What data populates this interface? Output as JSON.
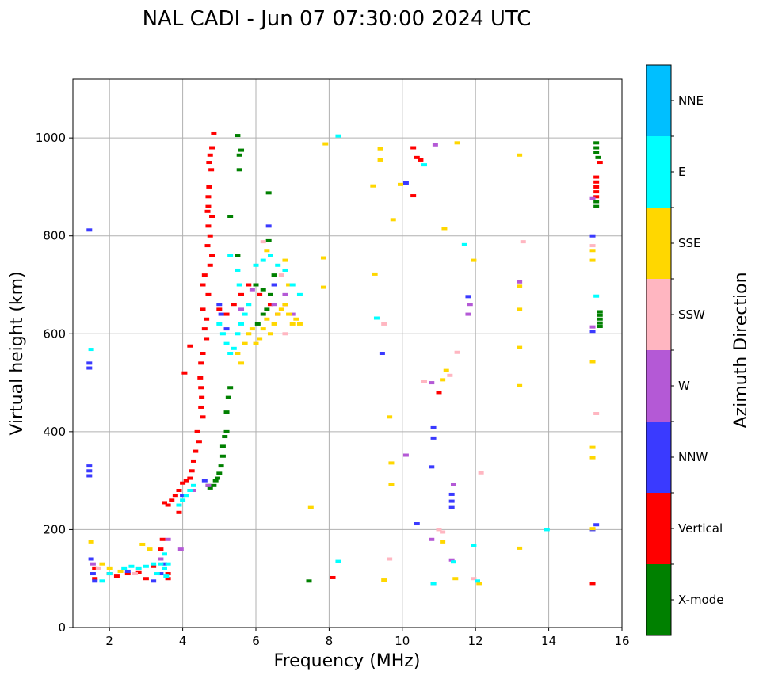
{
  "chart_data": {
    "type": "scatter",
    "title": "NAL CADI - Jun 07 07:30:00 2024 UTC",
    "xlabel": "Frequency (MHz)",
    "ylabel": "Virtual height (km)",
    "xlim": [
      1,
      16
    ],
    "ylim": [
      0,
      1120
    ],
    "xticks": [
      2,
      4,
      6,
      8,
      10,
      12,
      14,
      16
    ],
    "yticks": [
      0,
      200,
      400,
      600,
      800,
      1000
    ],
    "grid": true,
    "colorbar": {
      "label": "Azimuth Direction",
      "categories": [
        "X-mode",
        "Vertical",
        "NNW",
        "W",
        "SSW",
        "SSE",
        "E",
        "NNE"
      ],
      "colors": [
        "#008000",
        "#ff0000",
        "#3a3aff",
        "#b459d6",
        "#ffb6c1",
        "#ffd700",
        "#00ffff",
        "#00bfff"
      ]
    },
    "series": [
      {
        "name": "X-mode",
        "points": [
          [
            5.5,
            1005
          ],
          [
            5.6,
            975
          ],
          [
            5.55,
            965
          ],
          [
            5.55,
            935
          ],
          [
            6.35,
            888
          ],
          [
            5.3,
            840
          ],
          [
            5.5,
            760
          ],
          [
            5.3,
            490
          ],
          [
            5.25,
            470
          ],
          [
            5.2,
            440
          ],
          [
            5.2,
            400
          ],
          [
            5.15,
            390
          ],
          [
            5.1,
            370
          ],
          [
            5.1,
            350
          ],
          [
            5.05,
            330
          ],
          [
            5.0,
            315
          ],
          [
            4.95,
            305
          ],
          [
            4.9,
            300
          ],
          [
            4.85,
            290
          ],
          [
            4.75,
            285
          ],
          [
            4.7,
            290
          ],
          [
            6.0,
            700
          ],
          [
            6.2,
            690
          ],
          [
            6.4,
            680
          ],
          [
            6.3,
            650
          ],
          [
            6.2,
            640
          ],
          [
            6.05,
            620
          ],
          [
            6.5,
            720
          ],
          [
            6.35,
            790
          ],
          [
            7.45,
            95
          ],
          [
            15.3,
            990
          ],
          [
            15.3,
            980
          ],
          [
            15.3,
            970
          ],
          [
            15.35,
            960
          ],
          [
            15.3,
            870
          ],
          [
            15.3,
            860
          ],
          [
            15.4,
            645
          ],
          [
            15.4,
            638
          ],
          [
            15.4,
            630
          ],
          [
            15.4,
            622
          ],
          [
            15.4,
            615
          ]
        ]
      },
      {
        "name": "Vertical",
        "points": [
          [
            4.85,
            1010
          ],
          [
            4.8,
            980
          ],
          [
            4.75,
            965
          ],
          [
            4.72,
            950
          ],
          [
            4.78,
            935
          ],
          [
            4.72,
            900
          ],
          [
            4.7,
            880
          ],
          [
            4.7,
            860
          ],
          [
            4.8,
            840
          ],
          [
            4.68,
            850
          ],
          [
            4.7,
            820
          ],
          [
            4.75,
            800
          ],
          [
            4.68,
            780
          ],
          [
            4.8,
            760
          ],
          [
            4.75,
            740
          ],
          [
            4.6,
            720
          ],
          [
            4.55,
            700
          ],
          [
            4.7,
            680
          ],
          [
            4.55,
            650
          ],
          [
            4.65,
            630
          ],
          [
            4.6,
            610
          ],
          [
            4.65,
            590
          ],
          [
            4.55,
            560
          ],
          [
            4.5,
            540
          ],
          [
            4.48,
            510
          ],
          [
            4.5,
            490
          ],
          [
            4.52,
            470
          ],
          [
            4.5,
            450
          ],
          [
            4.55,
            430
          ],
          [
            4.4,
            400
          ],
          [
            4.45,
            380
          ],
          [
            4.35,
            360
          ],
          [
            4.3,
            340
          ],
          [
            4.25,
            320
          ],
          [
            4.2,
            305
          ],
          [
            4.1,
            300
          ],
          [
            4.0,
            295
          ],
          [
            3.9,
            280
          ],
          [
            3.8,
            270
          ],
          [
            3.7,
            260
          ],
          [
            3.6,
            250
          ],
          [
            3.5,
            255
          ],
          [
            3.9,
            235
          ],
          [
            4.05,
            520
          ],
          [
            4.2,
            575
          ],
          [
            5.0,
            650
          ],
          [
            5.2,
            640
          ],
          [
            5.4,
            660
          ],
          [
            5.6,
            680
          ],
          [
            5.8,
            700
          ],
          [
            6.1,
            680
          ],
          [
            6.4,
            660
          ],
          [
            6.6,
            640
          ],
          [
            6.8,
            660
          ],
          [
            1.6,
            120
          ],
          [
            1.6,
            100
          ],
          [
            2.0,
            110
          ],
          [
            2.2,
            105
          ],
          [
            2.5,
            110
          ],
          [
            2.8,
            112
          ],
          [
            3.0,
            100
          ],
          [
            3.6,
            110
          ],
          [
            3.6,
            100
          ],
          [
            3.2,
            125
          ],
          [
            3.4,
            160
          ],
          [
            3.45,
            180
          ],
          [
            8.1,
            102
          ],
          [
            10.3,
            980
          ],
          [
            10.4,
            960
          ],
          [
            10.5,
            955
          ],
          [
            10.3,
            882
          ],
          [
            11.0,
            480
          ],
          [
            15.4,
            950
          ],
          [
            15.3,
            920
          ],
          [
            15.3,
            910
          ],
          [
            15.3,
            900
          ],
          [
            15.3,
            890
          ],
          [
            15.3,
            880
          ],
          [
            15.2,
            90
          ]
        ]
      },
      {
        "name": "NNW",
        "points": [
          [
            1.45,
            812
          ],
          [
            1.45,
            540
          ],
          [
            1.45,
            530
          ],
          [
            1.45,
            330
          ],
          [
            1.45,
            320
          ],
          [
            1.45,
            310
          ],
          [
            1.5,
            140
          ],
          [
            1.55,
            110
          ],
          [
            1.6,
            95
          ],
          [
            2.5,
            115
          ],
          [
            3.2,
            95
          ],
          [
            3.4,
            110
          ],
          [
            3.5,
            130
          ],
          [
            4.0,
            270
          ],
          [
            4.6,
            300
          ],
          [
            5.0,
            660
          ],
          [
            5.05,
            640
          ],
          [
            5.2,
            610
          ],
          [
            6.35,
            820
          ],
          [
            6.5,
            700
          ],
          [
            9.45,
            560
          ],
          [
            10.1,
            908
          ],
          [
            10.85,
            408
          ],
          [
            10.85,
            387
          ],
          [
            10.8,
            328
          ],
          [
            10.4,
            212
          ],
          [
            11.35,
            272
          ],
          [
            11.35,
            258
          ],
          [
            11.35,
            245
          ],
          [
            11.8,
            676
          ],
          [
            15.2,
            800
          ],
          [
            15.2,
            605
          ],
          [
            15.3,
            210
          ],
          [
            15.2,
            200
          ]
        ]
      },
      {
        "name": "W",
        "points": [
          [
            1.55,
            130
          ],
          [
            3.4,
            140
          ],
          [
            3.6,
            180
          ],
          [
            3.95,
            160
          ],
          [
            4.3,
            280
          ],
          [
            4.7,
            290
          ],
          [
            5.6,
            650
          ],
          [
            5.9,
            690
          ],
          [
            6.5,
            660
          ],
          [
            6.8,
            680
          ],
          [
            7.0,
            640
          ],
          [
            10.1,
            352
          ],
          [
            10.9,
            986
          ],
          [
            10.8,
            500
          ],
          [
            10.8,
            180
          ],
          [
            10.85,
            90
          ],
          [
            11.4,
            292
          ],
          [
            11.35,
            138
          ],
          [
            11.85,
            660
          ],
          [
            11.8,
            640
          ],
          [
            13.2,
            706
          ],
          [
            15.2,
            876
          ],
          [
            15.2,
            614
          ]
        ]
      },
      {
        "name": "SSW",
        "points": [
          [
            1.7,
            120
          ],
          [
            2.7,
            110
          ],
          [
            6.2,
            788
          ],
          [
            6.7,
            720
          ],
          [
            6.8,
            600
          ],
          [
            10.6,
            502
          ],
          [
            11.0,
            200
          ],
          [
            11.1,
            195
          ],
          [
            11.5,
            562
          ],
          [
            11.3,
            515
          ],
          [
            12.15,
            316
          ],
          [
            11.95,
            100
          ],
          [
            13.3,
            788
          ],
          [
            15.2,
            780
          ],
          [
            15.3,
            437
          ],
          [
            9.65,
            140
          ],
          [
            9.5,
            620
          ]
        ]
      },
      {
        "name": "SSE",
        "points": [
          [
            1.5,
            175
          ],
          [
            1.8,
            130
          ],
          [
            2.0,
            120
          ],
          [
            2.3,
            115
          ],
          [
            2.9,
            170
          ],
          [
            3.1,
            160
          ],
          [
            5.5,
            560
          ],
          [
            5.6,
            540
          ],
          [
            5.7,
            580
          ],
          [
            5.8,
            600
          ],
          [
            5.9,
            610
          ],
          [
            6.0,
            580
          ],
          [
            6.1,
            590
          ],
          [
            6.2,
            610
          ],
          [
            6.3,
            630
          ],
          [
            6.4,
            600
          ],
          [
            6.5,
            620
          ],
          [
            6.6,
            640
          ],
          [
            6.7,
            650
          ],
          [
            6.8,
            660
          ],
          [
            6.9,
            640
          ],
          [
            7.0,
            620
          ],
          [
            7.1,
            630
          ],
          [
            7.2,
            620
          ],
          [
            6.3,
            770
          ],
          [
            6.8,
            750
          ],
          [
            6.9,
            700
          ],
          [
            7.9,
            988
          ],
          [
            7.85,
            755
          ],
          [
            7.85,
            695
          ],
          [
            7.5,
            245
          ],
          [
            9.4,
            978
          ],
          [
            9.4,
            955
          ],
          [
            9.2,
            902
          ],
          [
            9.25,
            722
          ],
          [
            9.65,
            430
          ],
          [
            9.7,
            336
          ],
          [
            9.7,
            292
          ],
          [
            9.75,
            833
          ],
          [
            9.95,
            905
          ],
          [
            9.5,
            97
          ],
          [
            11.15,
            815
          ],
          [
            11.2,
            525
          ],
          [
            11.1,
            506
          ],
          [
            11.1,
            175
          ],
          [
            11.5,
            990
          ],
          [
            11.45,
            100
          ],
          [
            11.95,
            750
          ],
          [
            12.1,
            90
          ],
          [
            13.2,
            965
          ],
          [
            13.2,
            697
          ],
          [
            13.2,
            650
          ],
          [
            13.2,
            572
          ],
          [
            13.2,
            494
          ],
          [
            13.2,
            162
          ],
          [
            15.2,
            770
          ],
          [
            15.2,
            750
          ],
          [
            15.2,
            543
          ],
          [
            15.2,
            368
          ],
          [
            15.2,
            347
          ],
          [
            15.2,
            202
          ]
        ]
      },
      {
        "name": "E",
        "points": [
          [
            1.5,
            568
          ],
          [
            1.8,
            95
          ],
          [
            2.0,
            110
          ],
          [
            2.4,
            120
          ],
          [
            2.6,
            125
          ],
          [
            2.8,
            120
          ],
          [
            3.0,
            125
          ],
          [
            3.2,
            130
          ],
          [
            3.4,
            130
          ],
          [
            3.5,
            120
          ],
          [
            3.6,
            130
          ],
          [
            3.3,
            110
          ],
          [
            3.55,
            105
          ],
          [
            3.5,
            150
          ],
          [
            3.9,
            250
          ],
          [
            4.0,
            260
          ],
          [
            4.1,
            270
          ],
          [
            4.2,
            280
          ],
          [
            4.3,
            290
          ],
          [
            5.0,
            620
          ],
          [
            5.1,
            600
          ],
          [
            5.2,
            580
          ],
          [
            5.3,
            560
          ],
          [
            5.4,
            570
          ],
          [
            5.5,
            600
          ],
          [
            5.6,
            620
          ],
          [
            5.7,
            640
          ],
          [
            5.8,
            660
          ],
          [
            6.0,
            740
          ],
          [
            6.2,
            750
          ],
          [
            6.4,
            760
          ],
          [
            6.6,
            740
          ],
          [
            6.8,
            730
          ],
          [
            7.0,
            700
          ],
          [
            7.2,
            680
          ],
          [
            5.3,
            760
          ],
          [
            5.55,
            700
          ],
          [
            5.5,
            730
          ],
          [
            8.25,
            1004
          ],
          [
            8.25,
            135
          ],
          [
            9.3,
            632
          ],
          [
            10.6,
            945
          ],
          [
            10.85,
            90
          ],
          [
            11.4,
            134
          ],
          [
            11.7,
            782
          ],
          [
            11.95,
            167
          ],
          [
            12.05,
            95
          ],
          [
            13.95,
            200
          ],
          [
            15.3,
            677
          ]
        ]
      }
    ]
  }
}
